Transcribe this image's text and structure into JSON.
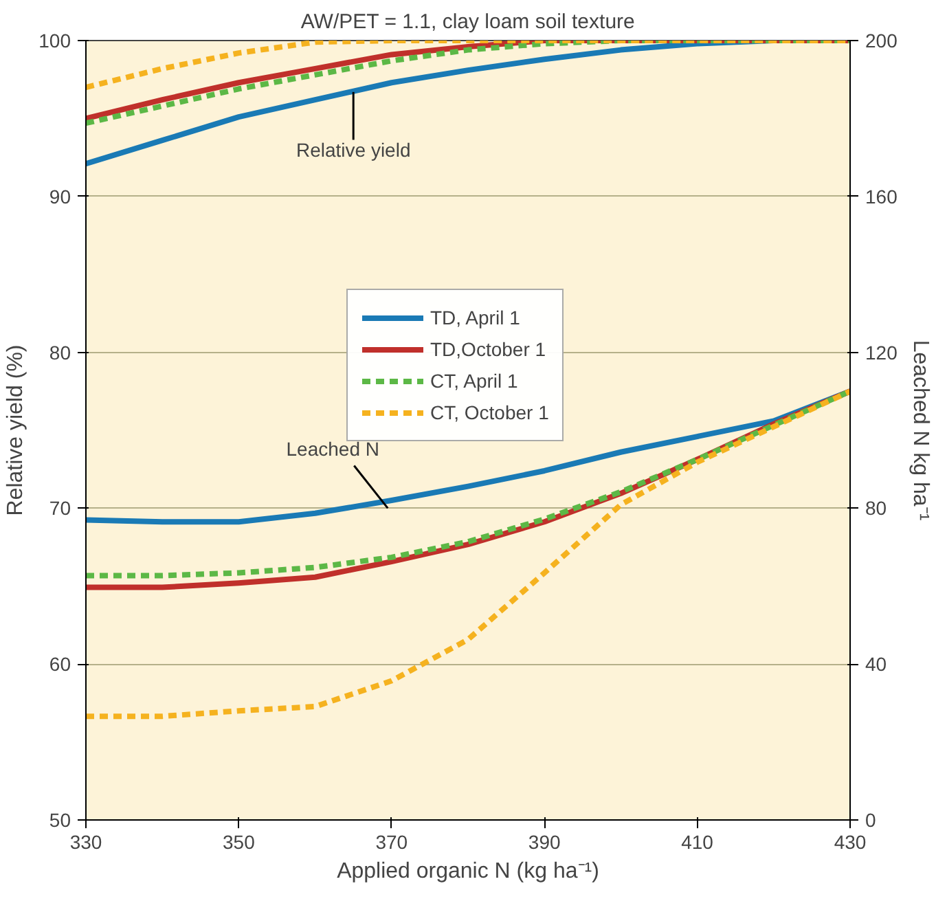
{
  "chart_data": {
    "type": "line",
    "title": "AW/PET = 1.1, clay loam soil texture",
    "xlabel": "Applied organic N (kg ha⁻¹)",
    "ylabel": "Relative yield (%)",
    "y2label": "Leached N kg ha⁻¹",
    "x": [
      330,
      340,
      350,
      360,
      370,
      380,
      390,
      400,
      410,
      420,
      430
    ],
    "xlim": [
      330,
      430
    ],
    "xticks": [
      330,
      350,
      370,
      390,
      410,
      430
    ],
    "ylim": [
      50,
      100
    ],
    "yticks": [
      50,
      60,
      70,
      80,
      90,
      100
    ],
    "y2lim": [
      0,
      200
    ],
    "y2ticks": [
      0,
      40,
      80,
      120,
      160,
      200
    ],
    "grid": "y",
    "legend": "right",
    "marker": "none",
    "series": [
      {
        "name": "TD, April 1",
        "color": "#1a7ab5",
        "line_style": "solid",
        "values": [
          92.1,
          93.6,
          95.1,
          96.2,
          97.3,
          98.1,
          98.8,
          99.4,
          99.8,
          100,
          100
        ]
      },
      {
        "name": "TD,October 1",
        "color": "#c0302b",
        "line_style": "solid",
        "values": [
          95.0,
          96.2,
          97.3,
          98.2,
          99.1,
          99.6,
          100,
          100,
          100,
          100,
          100
        ]
      },
      {
        "name": "CT, April 1",
        "color": "#5cb846",
        "line_style": "dashed",
        "values": [
          94.7,
          95.8,
          96.9,
          97.8,
          98.7,
          99.4,
          99.8,
          100,
          100,
          100,
          100
        ]
      },
      {
        "name": "CT, October 1",
        "color": "#f5b21f",
        "line_style": "dashed",
        "values": [
          97.0,
          98.2,
          99.2,
          99.9,
          100,
          100,
          100,
          100,
          100,
          100,
          100
        ]
      },
      {
        "color": "#1a7ab5",
        "line_style": "solid",
        "axis": "y2",
        "values": [
          77,
          76.5,
          76.5,
          78.7,
          82,
          85.6,
          89.6,
          94.4,
          98.4,
          102.4,
          110
        ]
      },
      {
        "color": "#c0302b",
        "line_style": "solid",
        "axis": "y2",
        "values": [
          59.7,
          59.7,
          60.8,
          62.3,
          66.3,
          70.7,
          76.5,
          83.8,
          92.5,
          101.6,
          110
        ]
      },
      {
        "color": "#5cb846",
        "line_style": "dashed",
        "axis": "y2",
        "values": [
          62.7,
          62.7,
          63.4,
          64.8,
          67.4,
          71.4,
          77.2,
          84.2,
          92.5,
          101.3,
          110
        ]
      },
      {
        "color": "#f5b21f",
        "line_style": "dashed",
        "axis": "y2",
        "values": [
          26.6,
          26.6,
          28,
          29.1,
          35.7,
          46.3,
          63.4,
          80.9,
          91.8,
          100.9,
          110
        ]
      }
    ],
    "annotations": [
      {
        "text": "Relative yield",
        "x": 365,
        "y": 96.7
      },
      {
        "text": "Leached N",
        "x": 369.5,
        "y": 70.0
      }
    ]
  }
}
